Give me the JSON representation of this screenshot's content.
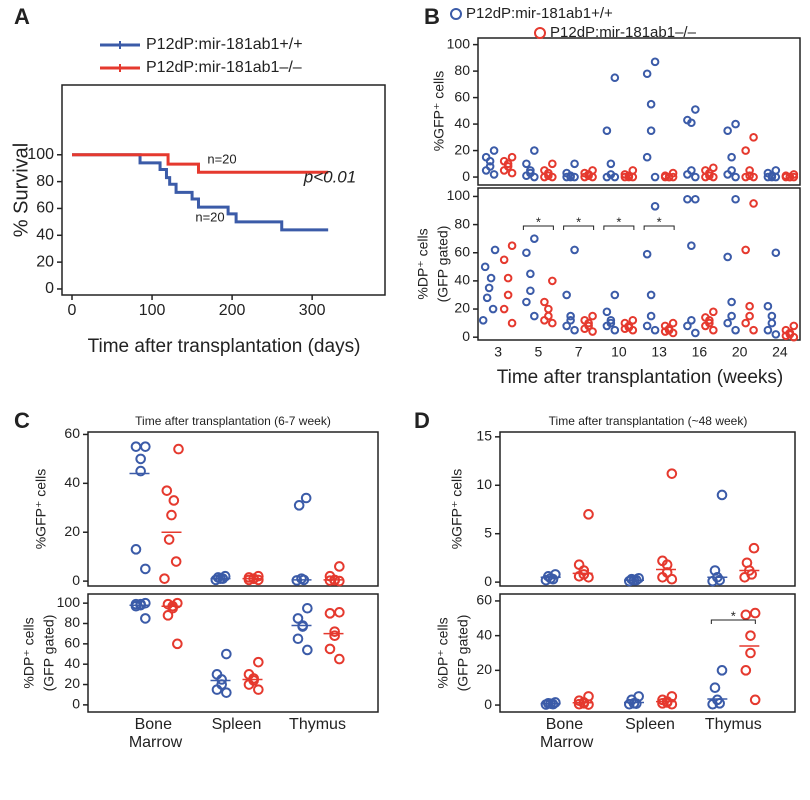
{
  "chart_data": [
    {
      "type": "step",
      "panel": "A",
      "ylabel": "% Survival",
      "xlabel": "Time after transplantation (days)",
      "xlim": [
        -12.5,
        391
      ],
      "xticks": [
        0,
        100,
        200,
        300
      ],
      "ylim": [
        -4.5,
        152
      ],
      "yticks": [
        0,
        20,
        40,
        60,
        80,
        100
      ],
      "annotations": [
        "n=20",
        "n=20",
        "p<0.01"
      ],
      "series": [
        {
          "name": "P12dP:mir-181ab1+/+",
          "color": "#3b5ba8",
          "x": [
            0,
            85,
            110,
            118,
            122,
            130,
            150,
            158,
            195,
            205,
            262,
            320
          ],
          "values": [
            100,
            94,
            89,
            83,
            78,
            72,
            67,
            61,
            56,
            50,
            44,
            44
          ]
        },
        {
          "name": "P12dP:mir-181ab1–/–",
          "color": "#e5392e",
          "x": [
            0,
            120,
            158,
            320
          ],
          "values": [
            100,
            93,
            87,
            87
          ]
        }
      ]
    },
    {
      "type": "dotplot",
      "panel": "B",
      "ylabel": "%GFP⁺ cells",
      "ylim": [
        -6,
        105
      ],
      "yticks": [
        0,
        20,
        40,
        60,
        80,
        100
      ],
      "series": [
        {
          "name": "P12dP:mir-181ab1+/+",
          "color": "#3b5ba8",
          "values": [
            [
              20,
              15,
              12,
              8,
              5,
              2
            ],
            [
              20,
              10,
              5,
              3,
              1,
              0
            ],
            [
              10,
              3,
              1,
              0,
              0,
              0
            ],
            [
              75,
              35,
              10,
              2,
              0,
              0
            ],
            [
              87,
              78,
              55,
              35,
              15,
              0
            ],
            [
              51,
              43,
              41,
              5,
              2,
              0
            ],
            [
              40,
              35,
              15,
              5,
              2,
              0
            ],
            [
              5,
              3,
              1,
              0,
              0,
              0
            ]
          ]
        },
        {
          "name": "P12dP:mir-181ab1–/–",
          "color": "#e5392e",
          "values": [
            [
              15,
              12,
              10,
              8,
              5,
              3
            ],
            [
              10,
              5,
              3,
              1,
              0,
              0
            ],
            [
              5,
              3,
              2,
              1,
              0,
              0
            ],
            [
              5,
              2,
              1,
              0,
              0,
              0
            ],
            [
              3,
              1,
              0,
              0,
              0,
              0
            ],
            [
              7,
              5,
              3,
              1,
              0,
              0
            ],
            [
              30,
              20,
              5,
              1,
              0,
              0
            ],
            [
              2,
              1,
              0,
              0,
              0,
              0
            ]
          ]
        }
      ]
    },
    {
      "type": "dotplot",
      "ylabel": [
        "%DP⁺ cells",
        "(GFP gated)"
      ],
      "xlabel": "Time after transplantation (weeks)",
      "categories": [
        "3",
        "5",
        "7",
        "10",
        "13",
        "16",
        "20",
        "24"
      ],
      "ylim": [
        -2,
        106
      ],
      "yticks": [
        0,
        20,
        40,
        60,
        80,
        100
      ],
      "significance": [
        null,
        "*",
        "*",
        "*",
        "*",
        null,
        null,
        null
      ],
      "series": [
        {
          "color": "#3b5ba8",
          "values": [
            [
              62,
              50,
              42,
              35,
              28,
              20,
              12
            ],
            [
              70,
              60,
              45,
              33,
              25,
              15
            ],
            [
              62,
              30,
              15,
              12,
              8,
              5
            ],
            [
              30,
              18,
              12,
              10,
              8,
              5
            ],
            [
              93,
              59,
              30,
              15,
              8,
              5
            ],
            [
              98,
              98,
              65,
              12,
              8,
              3
            ],
            [
              98,
              57,
              25,
              15,
              10,
              5
            ],
            [
              60,
              22,
              15,
              10,
              5,
              2
            ]
          ]
        },
        {
          "color": "#e5392e",
          "values": [
            [
              65,
              55,
              42,
              30,
              20,
              10
            ],
            [
              40,
              25,
              20,
              15,
              12,
              10
            ],
            [
              15,
              12,
              10,
              8,
              6,
              4
            ],
            [
              12,
              10,
              8,
              7,
              6,
              5
            ],
            [
              10,
              8,
              6,
              5,
              4,
              3
            ],
            [
              18,
              14,
              12,
              10,
              8,
              5
            ],
            [
              95,
              62,
              22,
              15,
              10,
              5
            ],
            [
              8,
              5,
              3,
              2,
              1,
              0
            ]
          ]
        }
      ]
    },
    {
      "type": "dotplot",
      "panel": "C",
      "title": "Time after transplantation (6-7 week)",
      "ylabel": "%GFP⁺ cells",
      "ylim": [
        -2,
        61
      ],
      "yticks": [
        0,
        20,
        40,
        60
      ],
      "series": [
        {
          "color": "#3b5ba8",
          "values": [
            [
              55,
              55,
              50,
              45,
              13,
              5
            ],
            [
              2,
              1.5,
              1,
              1,
              0.5
            ],
            [
              34,
              31,
              1,
              0.5,
              0.3
            ]
          ],
          "means": [
            44,
            1,
            0.5
          ]
        },
        {
          "color": "#e5392e",
          "values": [
            [
              54,
              37,
              33,
              27,
              17,
              8,
              1
            ],
            [
              2,
              1.5,
              1,
              1,
              0.5,
              0.5
            ],
            [
              6,
              2,
              0.5,
              0.3,
              0.2,
              0
            ]
          ],
          "means": [
            20,
            1,
            0.5
          ]
        }
      ]
    },
    {
      "type": "dotplot",
      "ylabel": [
        "%DP⁺ cells",
        "(GFP gated)"
      ],
      "categories": [
        "Bone Marrow",
        "Spleen",
        "Thymus"
      ],
      "ylim": [
        -7,
        109
      ],
      "yticks": [
        0,
        20,
        40,
        60,
        80,
        100
      ],
      "series": [
        {
          "color": "#3b5ba8",
          "values": [
            [
              100,
              99,
              99,
              98,
              97,
              85
            ],
            [
              50,
              30,
              25,
              20,
              15,
              12
            ],
            [
              95,
              85,
              78,
              77,
              65,
              54
            ]
          ],
          "means": [
            98,
            24,
            78
          ]
        },
        {
          "color": "#e5392e",
          "values": [
            [
              100,
              99,
              97,
              95,
              88,
              60
            ],
            [
              42,
              30,
              26,
              24,
              20,
              15
            ],
            [
              91,
              90,
              72,
              68,
              55,
              45
            ]
          ],
          "means": [
            97,
            25,
            70
          ]
        }
      ]
    },
    {
      "type": "dotplot",
      "panel": "D",
      "title": "Time after transplantation  (~48 week)",
      "ylabel": "%GFP⁺ cells",
      "ylim": [
        -0.4,
        15.5
      ],
      "yticks": [
        0,
        5,
        10,
        15
      ],
      "series": [
        {
          "color": "#3b5ba8",
          "values": [
            [
              0.8,
              0.6,
              0.4,
              0.3,
              0.2
            ],
            [
              0.4,
              0.3,
              0.2,
              0.2,
              0.1
            ],
            [
              9,
              1.2,
              0.5,
              0.2,
              0.1
            ]
          ],
          "means": [
            0.5,
            0.2,
            0.5
          ]
        },
        {
          "color": "#e5392e",
          "values": [
            [
              7,
              1.8,
              1.2,
              0.8,
              0.6,
              0.5
            ],
            [
              11.2,
              2.2,
              1.8,
              1,
              0.5,
              0.3
            ],
            [
              3.5,
              2,
              1.2,
              0.8,
              0.5
            ]
          ],
          "means": [
            0.9,
            1.3,
            1.2
          ]
        }
      ]
    },
    {
      "type": "dotplot",
      "ylabel": [
        "%DP⁺ cells",
        "(GFP gated)"
      ],
      "categories": [
        "Bone Marrow",
        "Spleen",
        "Thymus"
      ],
      "ylim": [
        -4,
        64
      ],
      "yticks": [
        0,
        20,
        40,
        60
      ],
      "significance": [
        null,
        null,
        "*"
      ],
      "series": [
        {
          "color": "#3b5ba8",
          "values": [
            [
              1.5,
              1,
              0.8,
              0.5,
              0.3
            ],
            [
              5,
              3,
              1,
              0.8,
              0.5
            ],
            [
              20,
              10,
              3,
              1,
              0.5
            ]
          ],
          "means": [
            0.8,
            1.5,
            3.5
          ]
        },
        {
          "color": "#e5392e",
          "values": [
            [
              5,
              2.5,
              1.5,
              1,
              0.5,
              0.3
            ],
            [
              5,
              3,
              2,
              1.5,
              1,
              0.5
            ],
            [
              53,
              52,
              40,
              30,
              20,
              3
            ]
          ],
          "means": [
            1.3,
            2,
            34
          ]
        }
      ]
    }
  ]
}
